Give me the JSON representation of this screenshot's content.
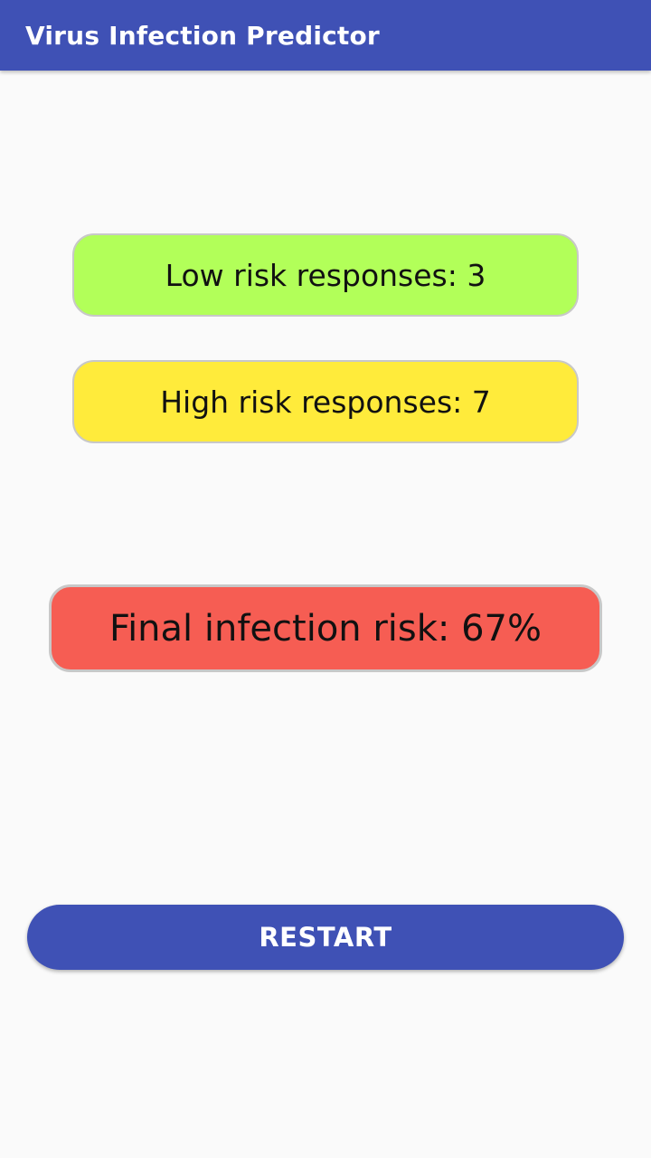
{
  "app_bar": {
    "title": "Virus Infection Predictor",
    "color": "#3f51b5"
  },
  "results": {
    "low_risk_label": "Low risk responses: 3",
    "low_risk_count": 3,
    "low_risk_color": "#b2ff59",
    "high_risk_label": "High risk responses: 7",
    "high_risk_count": 7,
    "high_risk_color": "#ffeb3b",
    "final_risk_label": "Final infection risk: 67%",
    "final_risk_percent": 67,
    "final_risk_color": "#f65d53"
  },
  "actions": {
    "restart_label": "RESTART"
  }
}
